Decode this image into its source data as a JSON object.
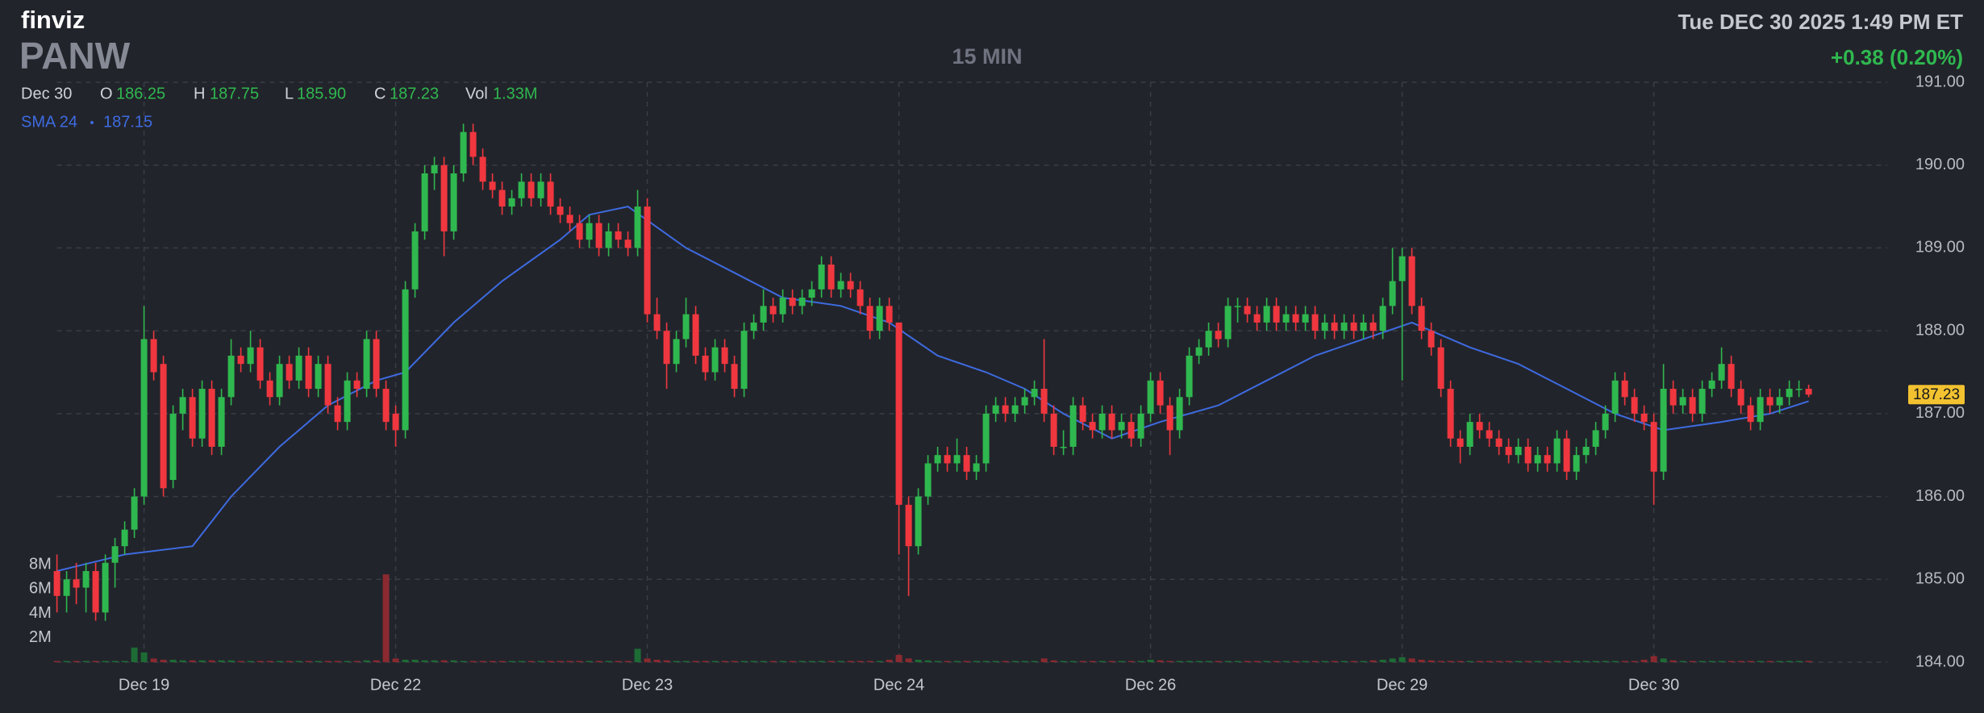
{
  "chart_data": {
    "type": "candlestick",
    "brand": "finviz",
    "ticker": "PANW",
    "interval": "15 MIN",
    "datetime": "Tue DEC 30 2025 1:49 PM ET",
    "change": "+0.38 (0.20%)",
    "legend": {
      "date": "Dec 30",
      "items": [
        {
          "label": "O",
          "value": "186.25"
        },
        {
          "label": "H",
          "value": "187.75"
        },
        {
          "label": "L",
          "value": "185.90"
        },
        {
          "label": "C",
          "value": "187.23"
        },
        {
          "label": "Vol",
          "value": "1.33M"
        }
      ]
    },
    "up_color": "#2fb84f",
    "down_color": "#f0373f",
    "ylim": [
      184,
      191
    ],
    "yticks": [
      {
        "value": 184,
        "label": "184.00"
      },
      {
        "value": 185,
        "label": "185.00"
      },
      {
        "value": 186,
        "label": "186.00"
      },
      {
        "value": 187,
        "label": "187.00"
      },
      {
        "value": 188,
        "label": "188.00"
      },
      {
        "value": 189,
        "label": "189.00"
      },
      {
        "value": 190,
        "label": "190.00"
      },
      {
        "value": 191,
        "label": "191.00"
      }
    ],
    "xlim": [
      0,
      181
    ],
    "xticks": [
      {
        "value": 9,
        "label": "Dec 19"
      },
      {
        "value": 35,
        "label": "Dec 22"
      },
      {
        "value": 61,
        "label": "Dec 23"
      },
      {
        "value": 87,
        "label": "Dec 24"
      },
      {
        "value": 113,
        "label": "Dec 26"
      },
      {
        "value": 139,
        "label": "Dec 29"
      },
      {
        "value": 165,
        "label": "Dec 30"
      }
    ],
    "grid": true,
    "candles": [
      [
        185.1,
        185.3,
        184.6,
        184.8
      ],
      [
        184.8,
        185.1,
        184.6,
        185.0
      ],
      [
        185.0,
        185.2,
        184.7,
        184.9
      ],
      [
        184.9,
        185.2,
        184.6,
        185.1
      ],
      [
        185.1,
        185.2,
        184.5,
        184.6
      ],
      [
        184.6,
        185.3,
        184.5,
        185.2
      ],
      [
        185.2,
        185.5,
        184.9,
        185.4
      ],
      [
        185.4,
        185.7,
        185.3,
        185.6
      ],
      [
        185.6,
        186.1,
        185.5,
        186.0
      ],
      [
        186.0,
        188.3,
        185.9,
        187.9
      ],
      [
        187.9,
        188.0,
        187.4,
        187.5
      ],
      [
        187.6,
        187.7,
        186.0,
        186.1
      ],
      [
        186.2,
        187.1,
        186.1,
        187.0
      ],
      [
        187.0,
        187.3,
        186.8,
        187.2
      ],
      [
        187.2,
        187.3,
        186.6,
        186.7
      ],
      [
        186.7,
        187.4,
        186.6,
        187.3
      ],
      [
        187.3,
        187.4,
        186.5,
        186.6
      ],
      [
        186.6,
        187.3,
        186.5,
        187.2
      ],
      [
        187.2,
        187.9,
        187.1,
        187.7
      ],
      [
        187.7,
        187.8,
        187.5,
        187.6
      ],
      [
        187.6,
        188.0,
        187.5,
        187.8
      ],
      [
        187.8,
        187.9,
        187.3,
        187.4
      ],
      [
        187.4,
        187.5,
        187.1,
        187.2
      ],
      [
        187.2,
        187.7,
        187.1,
        187.6
      ],
      [
        187.6,
        187.7,
        187.3,
        187.4
      ],
      [
        187.4,
        187.8,
        187.3,
        187.7
      ],
      [
        187.7,
        187.8,
        187.2,
        187.3
      ],
      [
        187.3,
        187.7,
        187.2,
        187.6
      ],
      [
        187.6,
        187.7,
        187.0,
        187.1
      ],
      [
        187.1,
        187.2,
        186.8,
        186.9
      ],
      [
        186.9,
        187.5,
        186.8,
        187.4
      ],
      [
        187.4,
        187.5,
        187.2,
        187.3
      ],
      [
        187.3,
        188.0,
        187.2,
        187.9
      ],
      [
        187.9,
        188.0,
        187.2,
        187.3
      ],
      [
        187.3,
        187.4,
        186.8,
        186.9
      ],
      [
        187.0,
        187.1,
        186.6,
        186.8
      ],
      [
        186.8,
        188.6,
        186.7,
        188.5
      ],
      [
        188.5,
        189.3,
        188.4,
        189.2
      ],
      [
        189.2,
        190.0,
        189.1,
        189.9
      ],
      [
        189.9,
        190.1,
        189.7,
        190.0
      ],
      [
        190.0,
        190.1,
        188.9,
        189.2
      ],
      [
        189.2,
        190.0,
        189.1,
        189.9
      ],
      [
        189.9,
        190.5,
        189.8,
        190.4
      ],
      [
        190.4,
        190.5,
        190.0,
        190.1
      ],
      [
        190.1,
        190.2,
        189.7,
        189.8
      ],
      [
        189.8,
        189.9,
        189.6,
        189.7
      ],
      [
        189.7,
        189.8,
        189.4,
        189.5
      ],
      [
        189.5,
        189.7,
        189.4,
        189.6
      ],
      [
        189.6,
        189.9,
        189.5,
        189.8
      ],
      [
        189.8,
        189.9,
        189.5,
        189.6
      ],
      [
        189.6,
        189.9,
        189.5,
        189.8
      ],
      [
        189.8,
        189.9,
        189.4,
        189.5
      ],
      [
        189.5,
        189.6,
        189.3,
        189.4
      ],
      [
        189.4,
        189.5,
        189.2,
        189.3
      ],
      [
        189.3,
        189.4,
        189.0,
        189.1
      ],
      [
        189.1,
        189.4,
        189.0,
        189.3
      ],
      [
        189.3,
        189.4,
        188.9,
        189.0
      ],
      [
        189.0,
        189.3,
        188.9,
        189.2
      ],
      [
        189.2,
        189.3,
        189.0,
        189.1
      ],
      [
        189.1,
        189.2,
        188.9,
        189.0
      ],
      [
        189.0,
        189.7,
        188.9,
        189.5
      ],
      [
        189.5,
        189.6,
        188.1,
        188.2
      ],
      [
        188.2,
        188.4,
        187.9,
        188.0
      ],
      [
        188.0,
        188.1,
        187.3,
        187.6
      ],
      [
        187.6,
        188.0,
        187.5,
        187.9
      ],
      [
        187.9,
        188.4,
        187.8,
        188.2
      ],
      [
        188.2,
        188.3,
        187.6,
        187.7
      ],
      [
        187.7,
        187.8,
        187.4,
        187.5
      ],
      [
        187.5,
        187.9,
        187.4,
        187.8
      ],
      [
        187.8,
        187.9,
        187.5,
        187.6
      ],
      [
        187.6,
        187.7,
        187.2,
        187.3
      ],
      [
        187.3,
        188.1,
        187.2,
        188.0
      ],
      [
        188.0,
        188.2,
        187.9,
        188.1
      ],
      [
        188.1,
        188.5,
        188.0,
        188.3
      ],
      [
        188.3,
        188.4,
        188.1,
        188.2
      ],
      [
        188.2,
        188.5,
        188.1,
        188.4
      ],
      [
        188.4,
        188.5,
        188.2,
        188.3
      ],
      [
        188.3,
        188.5,
        188.2,
        188.4
      ],
      [
        188.4,
        188.6,
        188.3,
        188.5
      ],
      [
        188.5,
        188.9,
        188.4,
        188.8
      ],
      [
        188.8,
        188.9,
        188.4,
        188.5
      ],
      [
        188.5,
        188.7,
        188.4,
        188.6
      ],
      [
        188.6,
        188.7,
        188.4,
        188.5
      ],
      [
        188.5,
        188.6,
        188.2,
        188.3
      ],
      [
        188.3,
        188.4,
        187.9,
        188.0
      ],
      [
        188.0,
        188.4,
        187.9,
        188.3
      ],
      [
        188.3,
        188.4,
        188.0,
        188.1
      ],
      [
        188.1,
        188.1,
        185.3,
        185.9
      ],
      [
        185.9,
        186.0,
        184.8,
        185.4
      ],
      [
        185.4,
        186.1,
        185.3,
        186.0
      ],
      [
        186.0,
        186.5,
        185.9,
        186.4
      ],
      [
        186.4,
        186.6,
        186.3,
        186.5
      ],
      [
        186.5,
        186.6,
        186.3,
        186.4
      ],
      [
        186.4,
        186.7,
        186.3,
        186.5
      ],
      [
        186.5,
        186.6,
        186.2,
        186.3
      ],
      [
        186.3,
        186.5,
        186.2,
        186.4
      ],
      [
        186.4,
        187.1,
        186.3,
        187.0
      ],
      [
        187.0,
        187.2,
        186.9,
        187.1
      ],
      [
        187.1,
        187.2,
        186.9,
        187.0
      ],
      [
        187.0,
        187.2,
        186.9,
        187.1
      ],
      [
        187.1,
        187.3,
        187.0,
        187.2
      ],
      [
        187.2,
        187.4,
        187.1,
        187.3
      ],
      [
        187.3,
        187.9,
        186.9,
        187.0
      ],
      [
        187.0,
        187.1,
        186.5,
        186.6
      ],
      [
        186.6,
        186.8,
        186.5,
        186.6
      ],
      [
        186.6,
        187.2,
        186.5,
        187.1
      ],
      [
        187.1,
        187.2,
        186.8,
        186.9
      ],
      [
        186.9,
        187.0,
        186.7,
        186.8
      ],
      [
        186.8,
        187.1,
        186.7,
        187.0
      ],
      [
        187.0,
        187.1,
        186.7,
        186.8
      ],
      [
        186.8,
        187.0,
        186.7,
        186.9
      ],
      [
        186.9,
        187.0,
        186.6,
        186.7
      ],
      [
        186.7,
        187.1,
        186.6,
        187.0
      ],
      [
        187.0,
        187.5,
        186.9,
        187.4
      ],
      [
        187.4,
        187.5,
        187.0,
        187.1
      ],
      [
        187.1,
        187.2,
        186.5,
        186.8
      ],
      [
        186.8,
        187.3,
        186.7,
        187.2
      ],
      [
        187.2,
        187.8,
        187.1,
        187.7
      ],
      [
        187.7,
        187.9,
        187.6,
        187.8
      ],
      [
        187.8,
        188.1,
        187.7,
        188.0
      ],
      [
        188.0,
        188.1,
        187.8,
        187.9
      ],
      [
        187.9,
        188.4,
        187.8,
        188.3
      ],
      [
        188.3,
        188.4,
        188.1,
        188.3
      ],
      [
        188.3,
        188.4,
        188.1,
        188.2
      ],
      [
        188.2,
        188.3,
        188.0,
        188.1
      ],
      [
        188.1,
        188.4,
        188.0,
        188.3
      ],
      [
        188.3,
        188.4,
        188.0,
        188.1
      ],
      [
        188.1,
        188.3,
        188.0,
        188.2
      ],
      [
        188.2,
        188.3,
        188.0,
        188.1
      ],
      [
        188.1,
        188.3,
        188.0,
        188.2
      ],
      [
        188.2,
        188.3,
        187.9,
        188.0
      ],
      [
        188.0,
        188.2,
        187.9,
        188.1
      ],
      [
        188.1,
        188.2,
        187.9,
        188.0
      ],
      [
        188.0,
        188.2,
        187.9,
        188.1
      ],
      [
        188.1,
        188.2,
        187.9,
        188.0
      ],
      [
        188.0,
        188.2,
        187.9,
        188.1
      ],
      [
        188.1,
        188.2,
        187.9,
        188.0
      ],
      [
        188.0,
        188.4,
        187.9,
        188.3
      ],
      [
        188.3,
        189.0,
        188.2,
        188.6
      ],
      [
        188.6,
        189.0,
        187.4,
        188.9
      ],
      [
        188.9,
        189.0,
        188.2,
        188.3
      ],
      [
        188.3,
        188.4,
        187.9,
        188.0
      ],
      [
        188.0,
        188.1,
        187.7,
        187.8
      ],
      [
        187.8,
        187.9,
        187.2,
        187.3
      ],
      [
        187.3,
        187.4,
        186.6,
        186.7
      ],
      [
        186.7,
        186.8,
        186.4,
        186.6
      ],
      [
        186.6,
        187.0,
        186.5,
        186.9
      ],
      [
        186.9,
        187.0,
        186.7,
        186.8
      ],
      [
        186.8,
        186.9,
        186.6,
        186.7
      ],
      [
        186.7,
        186.8,
        186.5,
        186.6
      ],
      [
        186.6,
        186.7,
        186.4,
        186.5
      ],
      [
        186.5,
        186.7,
        186.4,
        186.6
      ],
      [
        186.6,
        186.7,
        186.3,
        186.4
      ],
      [
        186.4,
        186.6,
        186.3,
        186.5
      ],
      [
        186.5,
        186.6,
        186.3,
        186.4
      ],
      [
        186.4,
        186.8,
        186.3,
        186.7
      ],
      [
        186.7,
        186.8,
        186.2,
        186.3
      ],
      [
        186.3,
        186.6,
        186.2,
        186.5
      ],
      [
        186.5,
        186.7,
        186.4,
        186.6
      ],
      [
        186.6,
        186.9,
        186.5,
        186.8
      ],
      [
        186.8,
        187.1,
        186.7,
        187.0
      ],
      [
        187.0,
        187.5,
        186.9,
        187.4
      ],
      [
        187.4,
        187.5,
        187.1,
        187.2
      ],
      [
        187.2,
        187.3,
        186.9,
        187.0
      ],
      [
        187.0,
        187.1,
        186.8,
        186.9
      ],
      [
        186.9,
        187.0,
        185.9,
        186.3
      ],
      [
        186.3,
        187.6,
        186.2,
        187.3
      ],
      [
        187.3,
        187.4,
        187.0,
        187.1
      ],
      [
        187.1,
        187.3,
        187.0,
        187.2
      ],
      [
        187.2,
        187.3,
        186.9,
        187.0
      ],
      [
        187.0,
        187.4,
        186.9,
        187.3
      ],
      [
        187.3,
        187.5,
        187.2,
        187.4
      ],
      [
        187.4,
        187.8,
        187.3,
        187.6
      ],
      [
        187.6,
        187.7,
        187.2,
        187.3
      ],
      [
        187.3,
        187.4,
        187.0,
        187.1
      ],
      [
        187.1,
        187.2,
        186.8,
        186.9
      ],
      [
        186.9,
        187.3,
        186.8,
        187.2
      ],
      [
        187.2,
        187.3,
        187.0,
        187.1
      ],
      [
        187.1,
        187.3,
        187.0,
        187.2
      ],
      [
        187.2,
        187.4,
        187.1,
        187.3
      ],
      [
        187.3,
        187.4,
        187.2,
        187.3
      ],
      [
        187.3,
        187.35,
        187.2,
        187.23
      ]
    ],
    "volume": {
      "vlim": [
        0,
        8
      ],
      "vticks": [
        {
          "value": 2,
          "label": "2M"
        },
        {
          "value": 4,
          "label": "4M"
        },
        {
          "value": 6,
          "label": "6M"
        },
        {
          "value": 8,
          "label": "8M"
        }
      ],
      "values": [
        0.1,
        0.1,
        0.1,
        0.1,
        0.1,
        0.1,
        0.1,
        0.1,
        1.2,
        0.8,
        0.3,
        0.2,
        0.2,
        0.15,
        0.15,
        0.15,
        0.15,
        0.15,
        0.15,
        0.1,
        0.1,
        0.1,
        0.1,
        0.1,
        0.1,
        0.1,
        0.1,
        0.1,
        0.1,
        0.1,
        0.1,
        0.1,
        0.15,
        0.15,
        7.2,
        0.3,
        0.2,
        0.2,
        0.15,
        0.15,
        0.15,
        0.15,
        0.1,
        0.1,
        0.1,
        0.1,
        0.1,
        0.1,
        0.1,
        0.1,
        0.1,
        0.1,
        0.1,
        0.1,
        0.1,
        0.1,
        0.1,
        0.1,
        0.1,
        0.1,
        1.1,
        0.3,
        0.2,
        0.15,
        0.1,
        0.1,
        0.1,
        0.1,
        0.1,
        0.1,
        0.1,
        0.1,
        0.1,
        0.1,
        0.1,
        0.1,
        0.1,
        0.1,
        0.1,
        0.1,
        0.1,
        0.1,
        0.1,
        0.1,
        0.1,
        0.1,
        0.2,
        0.6,
        0.3,
        0.2,
        0.15,
        0.1,
        0.1,
        0.1,
        0.1,
        0.1,
        0.1,
        0.1,
        0.1,
        0.1,
        0.1,
        0.1,
        0.3,
        0.15,
        0.1,
        0.1,
        0.1,
        0.1,
        0.1,
        0.1,
        0.1,
        0.1,
        0.1,
        0.2,
        0.15,
        0.1,
        0.1,
        0.1,
        0.1,
        0.1,
        0.1,
        0.1,
        0.1,
        0.1,
        0.1,
        0.1,
        0.1,
        0.1,
        0.1,
        0.1,
        0.1,
        0.1,
        0.1,
        0.1,
        0.1,
        0.1,
        0.15,
        0.2,
        0.3,
        0.4,
        0.3,
        0.2,
        0.15,
        0.1,
        0.1,
        0.1,
        0.1,
        0.1,
        0.1,
        0.1,
        0.1,
        0.1,
        0.1,
        0.1,
        0.1,
        0.1,
        0.1,
        0.1,
        0.1,
        0.1,
        0.1,
        0.1,
        0.1,
        0.1,
        0.2,
        0.5,
        0.3,
        0.15,
        0.1,
        0.1,
        0.1,
        0.1,
        0.1,
        0.1,
        0.1,
        0.1,
        0.1,
        0.1,
        0.1,
        0.1,
        0.1,
        0.1
      ]
    },
    "sma": {
      "name": "SMA 24",
      "last": "187.15",
      "color": "#3d6be0",
      "x": [
        0,
        7,
        14,
        18,
        23,
        28,
        33,
        36,
        41,
        46,
        52,
        55,
        59,
        65,
        70,
        75,
        81,
        86,
        91,
        96,
        100,
        104,
        109,
        114,
        120,
        125,
        130,
        135,
        140,
        146,
        151,
        156,
        161,
        166,
        172,
        177,
        181
      ],
      "values": [
        185.1,
        185.3,
        185.4,
        186.0,
        186.6,
        187.1,
        187.4,
        187.5,
        188.1,
        188.6,
        189.1,
        189.4,
        189.5,
        189.0,
        188.7,
        188.4,
        188.3,
        188.1,
        187.7,
        187.5,
        187.3,
        187.0,
        186.7,
        186.9,
        187.1,
        187.4,
        187.7,
        187.9,
        188.1,
        187.8,
        187.6,
        187.3,
        187.0,
        186.8,
        186.9,
        187.0,
        187.15
      ]
    }
  }
}
